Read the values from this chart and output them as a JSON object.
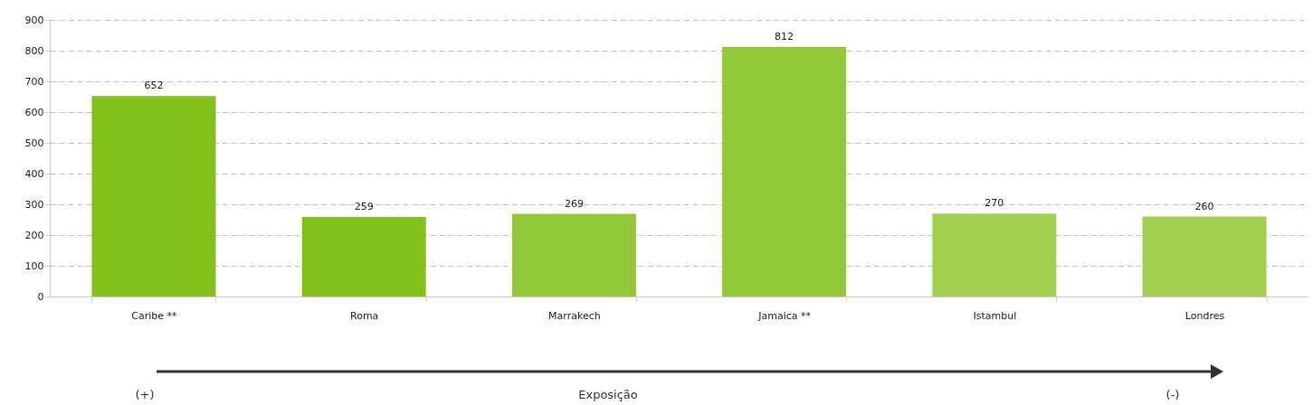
{
  "chart_data": {
    "type": "bar",
    "categories": [
      "Caribe **",
      "Roma",
      "Marrakech",
      "Jamaica **",
      "Istambul",
      "Londres"
    ],
    "values": [
      652,
      259,
      269,
      812,
      270,
      260
    ],
    "colors": [
      "#84c01c",
      "#84c01c",
      "#93c83a",
      "#93c83a",
      "#a2d050",
      "#a2d050"
    ],
    "ylim": [
      0,
      900
    ],
    "yticks": [
      0,
      100,
      200,
      300,
      400,
      500,
      600,
      700,
      800,
      900
    ],
    "grid": "y",
    "data_labels": true,
    "legend": false,
    "annotations": [
      "(+)",
      "Exposição",
      "(-)"
    ]
  }
}
